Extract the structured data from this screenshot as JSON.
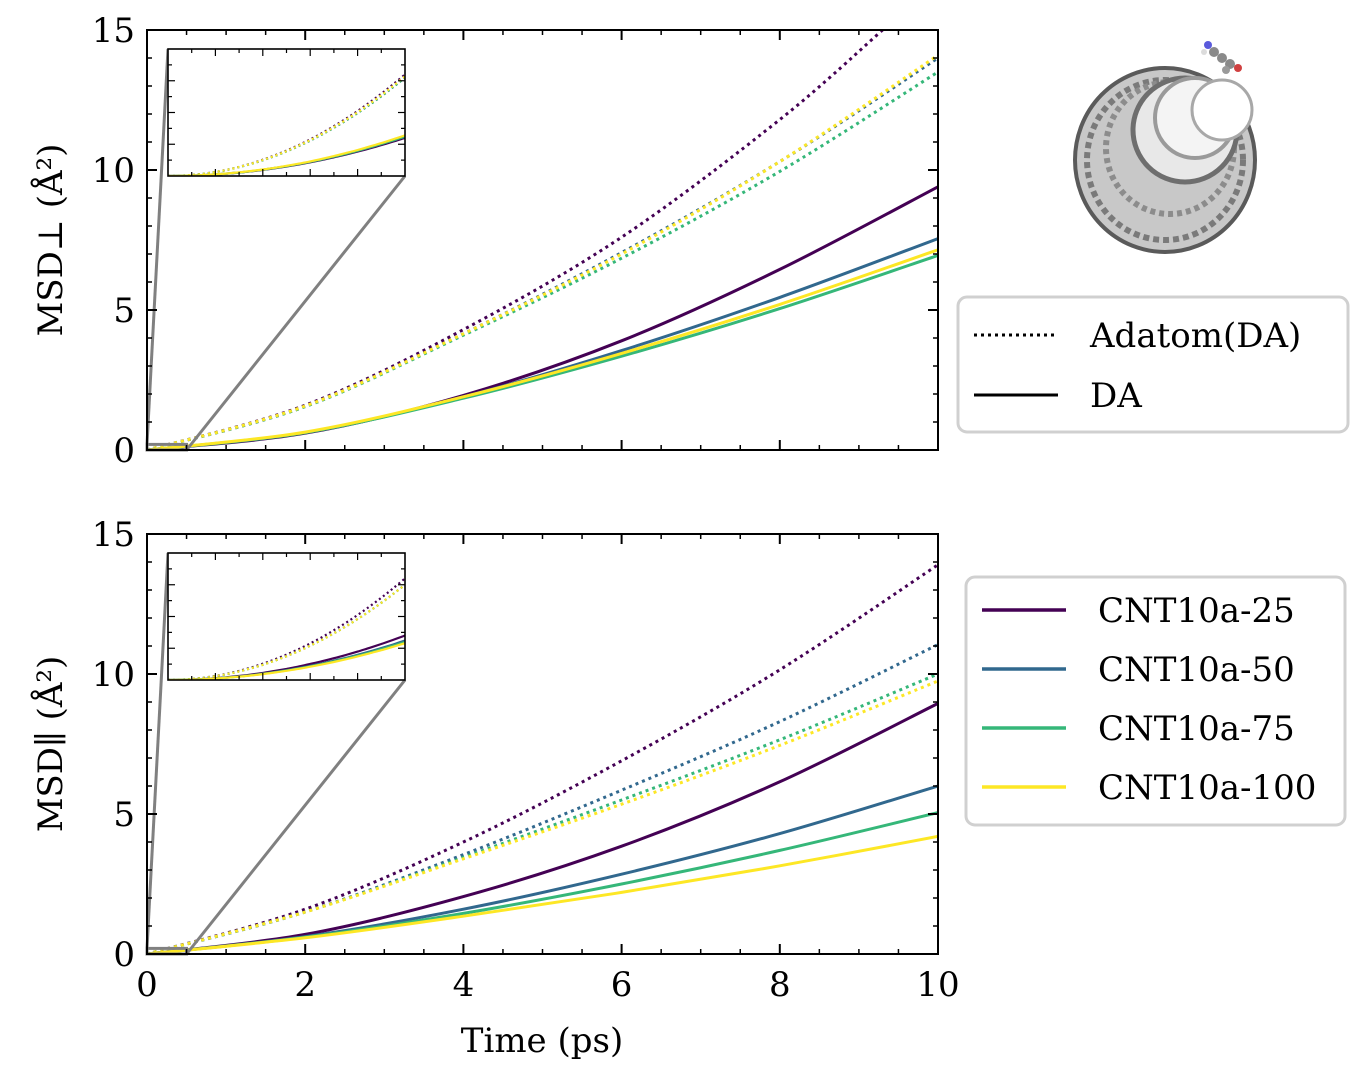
{
  "colors": {
    "CNT10a-25": "#440154",
    "CNT10a-50": "#31688e",
    "CNT10a-75": "#35b779",
    "CNT10a-100": "#fde725",
    "connector": "#808080"
  },
  "legend_style": {
    "title_entries": [
      {
        "label": "Adatom(DA)",
        "style": "dotted"
      },
      {
        "label": "DA",
        "style": "solid"
      }
    ]
  },
  "legend_series": [
    {
      "label": "CNT10a-25",
      "color": "#440154"
    },
    {
      "label": "CNT10a-50",
      "color": "#31688e"
    },
    {
      "label": "CNT10a-75",
      "color": "#35b779"
    },
    {
      "label": "CNT10a-100",
      "color": "#fde725"
    }
  ],
  "chart_data": [
    {
      "type": "line",
      "panel": "top",
      "ylabel": "MSD⊥ (Å²)",
      "xlabel": "",
      "xlim": [
        0,
        10
      ],
      "ylim": [
        0,
        15
      ],
      "xticks": [
        0,
        2,
        4,
        6,
        8,
        10
      ],
      "yticks": [
        0,
        5,
        10,
        15
      ],
      "x_tick_labels_visible": false,
      "series": [
        {
          "name": "CNT10a-25",
          "style": "solid",
          "x": [
            0,
            2,
            4,
            6,
            8,
            10
          ],
          "y": [
            0,
            0.6,
            1.95,
            3.9,
            6.45,
            9.4
          ]
        },
        {
          "name": "CNT10a-50",
          "style": "solid",
          "x": [
            0,
            2,
            4,
            6,
            8,
            10
          ],
          "y": [
            0,
            0.62,
            1.9,
            3.55,
            5.45,
            7.55
          ]
        },
        {
          "name": "CNT10a-75",
          "style": "solid",
          "x": [
            0,
            2,
            4,
            6,
            8,
            10
          ],
          "y": [
            0,
            0.62,
            1.85,
            3.35,
            5.05,
            6.95
          ]
        },
        {
          "name": "CNT10a-100",
          "style": "solid",
          "x": [
            0,
            2,
            4,
            6,
            8,
            10
          ],
          "y": [
            0,
            0.64,
            1.9,
            3.45,
            5.2,
            7.15
          ]
        },
        {
          "name": "CNT10a-25",
          "style": "dotted",
          "x": [
            0,
            2,
            4,
            6,
            8,
            9.3
          ],
          "y": [
            0,
            1.6,
            4.3,
            7.6,
            11.8,
            15.0
          ]
        },
        {
          "name": "CNT10a-50",
          "style": "dotted",
          "x": [
            0,
            2,
            4,
            6,
            8,
            10
          ],
          "y": [
            0,
            1.55,
            4.15,
            7.05,
            10.3,
            14.0
          ]
        },
        {
          "name": "CNT10a-75",
          "style": "dotted",
          "x": [
            0,
            2,
            4,
            6,
            8,
            10
          ],
          "y": [
            0,
            1.55,
            4.1,
            6.85,
            9.95,
            13.5
          ]
        },
        {
          "name": "CNT10a-100",
          "style": "dotted",
          "x": [
            0,
            2,
            4,
            6,
            8,
            10
          ],
          "y": [
            0,
            1.57,
            4.15,
            7.0,
            10.3,
            14.1
          ]
        }
      ],
      "inset": {
        "xlim": [
          0,
          0.5
        ],
        "ylim": [
          0,
          0.2
        ],
        "grid": false
      }
    },
    {
      "type": "line",
      "panel": "bottom",
      "ylabel": "MSD∥ (Å²)",
      "xlabel": "Time (ps)",
      "xlim": [
        0,
        10
      ],
      "ylim": [
        0,
        15
      ],
      "xticks": [
        0,
        2,
        4,
        6,
        8,
        10
      ],
      "yticks": [
        0,
        5,
        10,
        15
      ],
      "x_tick_labels_visible": true,
      "series": [
        {
          "name": "CNT10a-25",
          "style": "solid",
          "x": [
            0,
            2,
            4,
            6,
            8,
            10
          ],
          "y": [
            0,
            0.7,
            2.05,
            3.85,
            6.15,
            8.95
          ]
        },
        {
          "name": "CNT10a-50",
          "style": "solid",
          "x": [
            0,
            2,
            4,
            6,
            8,
            10
          ],
          "y": [
            0,
            0.62,
            1.6,
            2.85,
            4.3,
            6.0
          ]
        },
        {
          "name": "CNT10a-75",
          "style": "solid",
          "x": [
            0,
            2,
            4,
            6,
            8,
            10
          ],
          "y": [
            0,
            0.6,
            1.45,
            2.5,
            3.7,
            5.05
          ]
        },
        {
          "name": "CNT10a-100",
          "style": "solid",
          "x": [
            0,
            2,
            4,
            6,
            8,
            10
          ],
          "y": [
            0,
            0.58,
            1.35,
            2.2,
            3.15,
            4.2
          ]
        },
        {
          "name": "CNT10a-25",
          "style": "dotted",
          "x": [
            0,
            2,
            4,
            6,
            8,
            10
          ],
          "y": [
            0,
            1.6,
            4.0,
            6.9,
            10.15,
            13.9
          ]
        },
        {
          "name": "CNT10a-50",
          "style": "dotted",
          "x": [
            0,
            2,
            4,
            6,
            8,
            10
          ],
          "y": [
            0,
            1.5,
            3.55,
            5.85,
            8.3,
            11.05
          ]
        },
        {
          "name": "CNT10a-75",
          "style": "dotted",
          "x": [
            0,
            2,
            4,
            6,
            8,
            10
          ],
          "y": [
            0,
            1.5,
            3.45,
            5.5,
            7.65,
            10.0
          ]
        },
        {
          "name": "CNT10a-100",
          "style": "dotted",
          "x": [
            0,
            2,
            4,
            6,
            8,
            10
          ],
          "y": [
            0,
            1.5,
            3.4,
            5.35,
            7.45,
            9.75
          ]
        }
      ],
      "inset": {
        "xlim": [
          0,
          0.5
        ],
        "ylim": [
          0,
          0.2
        ],
        "grid": false
      }
    }
  ]
}
